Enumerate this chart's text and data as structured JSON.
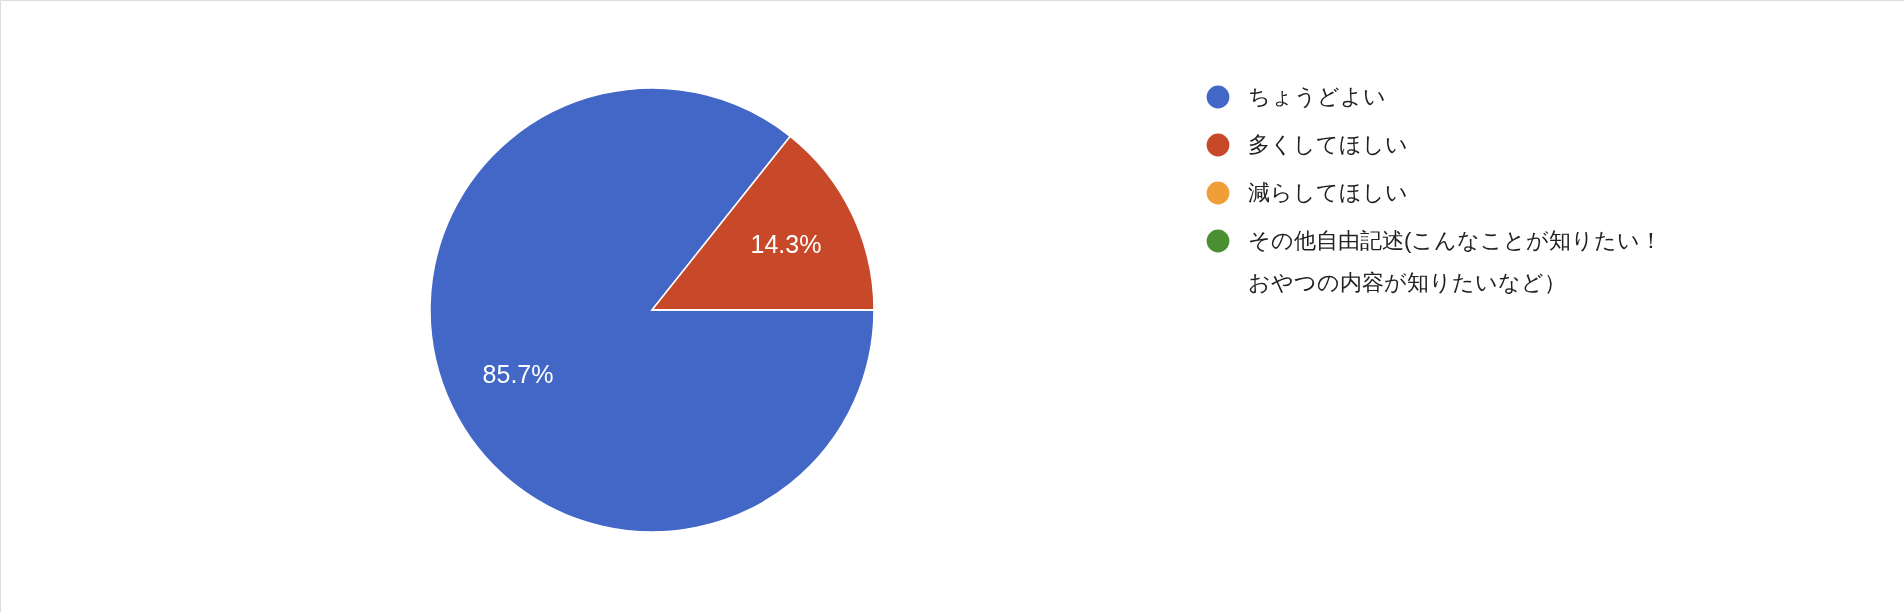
{
  "chart_data": {
    "type": "pie",
    "categories": [
      "ちょうどよい",
      "多くしてほしい",
      "減らしてほしい",
      "その他自由記述(こんなことが知りたい！おやつの内容が知りたいなど）"
    ],
    "values": [
      85.7,
      14.3,
      0,
      0
    ],
    "colors": [
      "#4267c6",
      "#c8482a",
      "#f09e38",
      "#4a8f32"
    ],
    "value_labels": [
      "85.7%",
      "14.3%",
      null,
      null
    ],
    "legend": "right"
  }
}
